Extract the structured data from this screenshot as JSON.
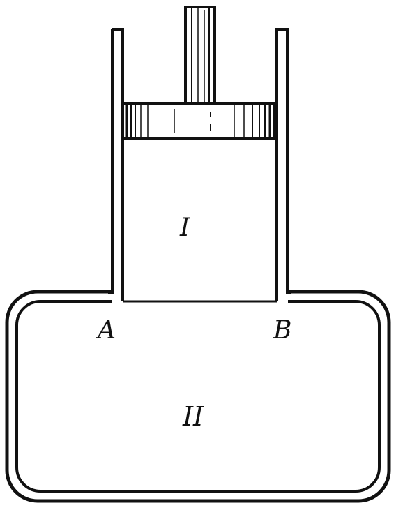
{
  "labels": {
    "upper_chamber": "I",
    "lower_chamber": "II",
    "point_a": "A",
    "point_b": "B"
  },
  "colors": {
    "ink": "#111111",
    "paper": "#ffffff"
  }
}
